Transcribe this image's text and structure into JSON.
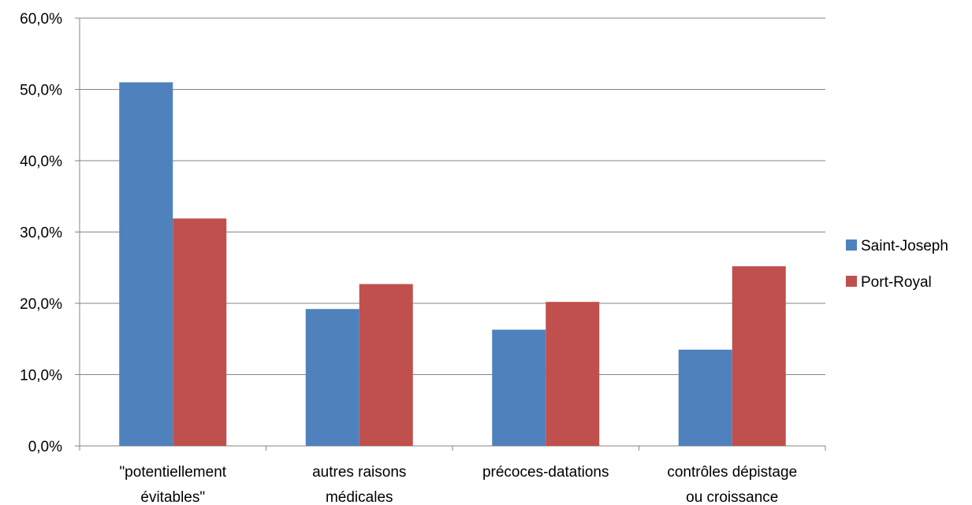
{
  "chart_data": {
    "type": "bar",
    "categories": [
      [
        "\"potentiellement",
        "évitables\""
      ],
      [
        "autres raisons",
        "médicales"
      ],
      [
        "précoces-datations"
      ],
      [
        "contrôles dépistage",
        "ou croissance"
      ]
    ],
    "series": [
      {
        "name": "Saint-Joseph",
        "color": "#4F81BD",
        "values": [
          51.0,
          19.2,
          16.3,
          13.5
        ]
      },
      {
        "name": "Port-Royal",
        "color": "#C0504D",
        "values": [
          31.9,
          22.7,
          20.2,
          25.2
        ]
      }
    ],
    "ylim": [
      0,
      60
    ],
    "yticks": [
      0,
      10,
      20,
      30,
      40,
      50,
      60
    ],
    "ytick_labels": [
      "0,0%",
      "10,0%",
      "20,0%",
      "30,0%",
      "40,0%",
      "50,0%",
      "60,0%"
    ],
    "grid": true,
    "legend_position": "right",
    "title": "",
    "xlabel": "",
    "ylabel": ""
  }
}
